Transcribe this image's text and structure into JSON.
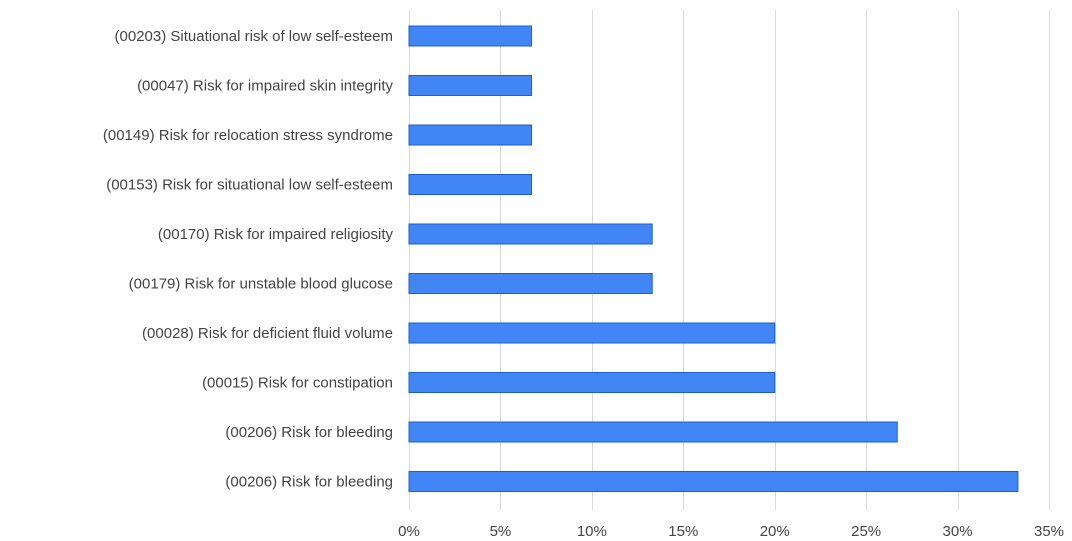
{
  "chart_data": {
    "type": "bar",
    "orientation": "horizontal",
    "categories": [
      "(00203) Situational risk of low self-esteem",
      "(00047) Risk for impaired skin integrity",
      "(00149) Risk for relocation stress syndrome",
      "(00153) Risk for situational low self-esteem",
      "(00170) Risk for impaired religiosity",
      "(00179) Risk for unstable blood glucose",
      "(00028) Risk for deficient fluid volume",
      "(00015) Risk for constipation",
      "(00206) Risk for bleeding",
      "(00206) Risk for bleeding"
    ],
    "values": [
      6.7,
      6.7,
      6.7,
      6.7,
      13.3,
      13.3,
      20.0,
      20.0,
      26.7,
      33.3
    ],
    "value_unit": "%",
    "xlim": [
      0,
      35
    ],
    "xticks": [
      0,
      5,
      10,
      15,
      20,
      25,
      30,
      35
    ],
    "xtick_labels": [
      "0%",
      "5%",
      "10%",
      "15%",
      "20%",
      "25%",
      "30%",
      "35%"
    ],
    "grid": "vertical",
    "legend": "none",
    "colors": {
      "bar_fill": "#4285f4",
      "bar_stroke": "#1a5fd0",
      "grid": "#d9d9d9",
      "text": "#444444"
    }
  }
}
